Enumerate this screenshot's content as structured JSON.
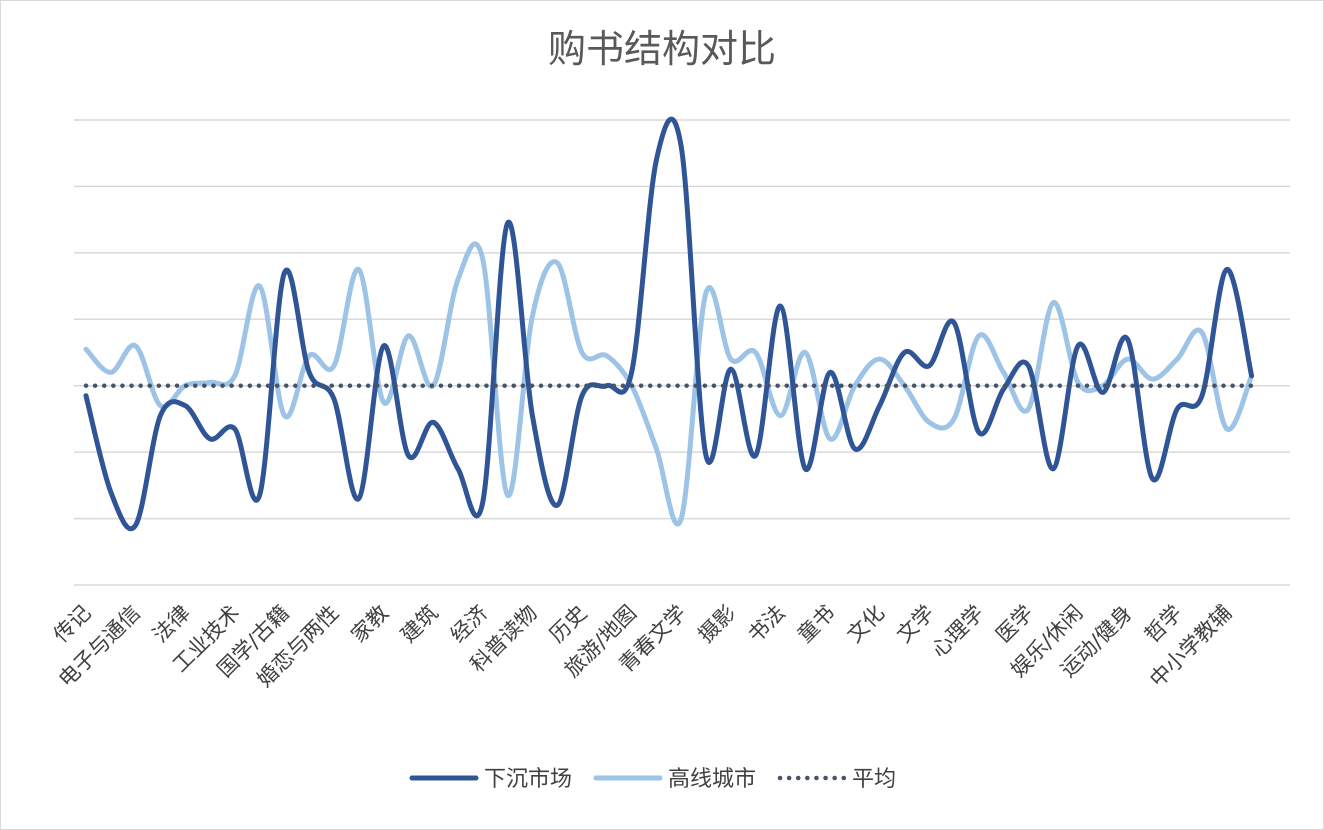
{
  "chart_data": {
    "type": "line",
    "title": "购书结构对比",
    "xlabel": "",
    "ylabel": "",
    "ylim": [
      -3,
      4
    ],
    "grid": true,
    "legend_position": "bottom",
    "categories": [
      "传记",
      "电子与通信",
      "法律",
      "工业技术",
      "国学/古籍",
      "婚恋与两性",
      "家教",
      "建筑",
      "经济",
      "科普读物",
      "历史",
      "旅游/地图",
      "青春文学",
      "摄影",
      "书法",
      "童书",
      "文化",
      "文学",
      "心理学",
      "医学",
      "娱乐/休闲",
      "运动/健身",
      "哲学",
      "中小学教辅"
    ],
    "x_tick_labels": [
      "传记",
      "电子与通信",
      "法律",
      "工业技术",
      "国学/古籍",
      "婚恋与两性",
      "家教",
      "建筑",
      "经济",
      "科普读物",
      "历史",
      "旅游/地图",
      "青春文学",
      "摄影",
      "书法",
      "童书",
      "文化",
      "文学",
      "心理学",
      "医学",
      "娱乐/休闲",
      "运动/健身",
      "哲学",
      "中小学教辅"
    ],
    "series": [
      {
        "name": "下沉市场",
        "color": "#2f5597",
        "style": "solid",
        "x": [
          0,
          0.5,
          1,
          1.5,
          2,
          2.5,
          3,
          3.5,
          4,
          4.5,
          5,
          5.5,
          6,
          6.5,
          7,
          7.5,
          8,
          8.5,
          9,
          9.5,
          10,
          10.5,
          11,
          11.5,
          12,
          12.5,
          13,
          13.5,
          14,
          14.5,
          15,
          15.5,
          16,
          16.5,
          17,
          17.5,
          18,
          18.5,
          19,
          19.5,
          20,
          20.5,
          21,
          21.5,
          22,
          22.5,
          23,
          23.5
        ],
        "values": [
          -0.15,
          -1.6,
          -2.1,
          -0.45,
          -0.3,
          -0.8,
          -0.65,
          -1.65,
          1.7,
          0.2,
          -0.2,
          -1.7,
          0.6,
          -1.05,
          -0.55,
          -1.25,
          -1.75,
          2.45,
          -0.45,
          -1.8,
          -0.15,
          0,
          0.2,
          3.4,
          3.6,
          -1.05,
          0.25,
          -1.05,
          1.2,
          -1.25,
          0.2,
          -0.95,
          -0.3,
          0.5,
          0.3,
          0.95,
          -0.7,
          -0.05,
          0.3,
          -1.25,
          0.6,
          -0.1,
          0.7,
          -1.4,
          -0.35,
          -0.15,
          1.75,
          0.15
        ]
      },
      {
        "name": "高线城市",
        "color": "#9dc3e6",
        "style": "solid",
        "x": [
          0,
          0.5,
          1,
          1.5,
          2,
          2.5,
          3,
          3.5,
          4,
          4.5,
          5,
          5.5,
          6,
          6.5,
          7,
          7.5,
          8,
          8.5,
          9,
          9.5,
          10,
          10.5,
          11,
          11.5,
          12,
          12.5,
          13,
          13.5,
          14,
          14.5,
          15,
          15.5,
          16,
          16.5,
          17,
          17.5,
          18,
          18.5,
          19,
          19.5,
          20,
          20.5,
          21,
          21.5,
          22,
          22.5,
          23,
          23.5
        ],
        "values": [
          0.55,
          0.2,
          0.6,
          -0.3,
          0,
          0.05,
          0.15,
          1.5,
          -0.45,
          0.45,
          0.3,
          1.75,
          -0.25,
          0.75,
          0,
          1.6,
          1.9,
          -1.65,
          1.05,
          1.85,
          0.5,
          0.45,
          0,
          -0.95,
          -2,
          1.4,
          0.4,
          0.5,
          -0.45,
          0.5,
          -0.8,
          0,
          0.4,
          0,
          -0.55,
          -0.5,
          0.75,
          0.2,
          -0.35,
          1.25,
          0.05,
          0,
          0.4,
          0.1,
          0.4,
          0.8,
          -0.65,
          0.15
        ]
      },
      {
        "name": "平均",
        "color": "#44546a",
        "style": "dotted",
        "x": [
          0,
          23.5
        ],
        "values": [
          0,
          0
        ]
      }
    ]
  }
}
